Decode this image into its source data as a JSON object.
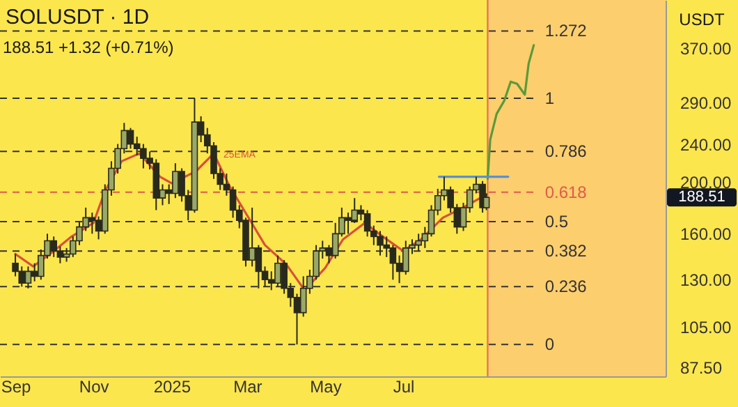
{
  "chart_data": {
    "type": "candlestick",
    "title": "SOLUSDT · 1D",
    "subtitle": "188.51 +1.32 (+0.71%)",
    "ylabel": "USDT",
    "color": "#2a2a1c",
    "log": true,
    "x": [
      "2024-09-01",
      "2024-09-06",
      "2024-09-11",
      "2024-09-16",
      "2024-09-21",
      "2024-09-26",
      "2024-10-01",
      "2024-10-06",
      "2024-10-11",
      "2024-10-16",
      "2024-10-21",
      "2024-10-26",
      "2024-10-31",
      "2024-11-05",
      "2024-11-10",
      "2024-11-15",
      "2024-11-20",
      "2024-11-25",
      "2024-11-30",
      "2024-12-05",
      "2024-12-10",
      "2024-12-15",
      "2024-12-20",
      "2024-12-25",
      "2024-12-30",
      "2025-01-04",
      "2025-01-09",
      "2025-01-14",
      "2025-01-19",
      "2025-01-24",
      "2025-01-29",
      "2025-02-03",
      "2025-02-08",
      "2025-02-13",
      "2025-02-18",
      "2025-02-23",
      "2025-02-28",
      "2025-03-05",
      "2025-03-10",
      "2025-03-15",
      "2025-03-20",
      "2025-03-25",
      "2025-03-30",
      "2025-04-04",
      "2025-04-09",
      "2025-04-14",
      "2025-04-19",
      "2025-04-24",
      "2025-04-29",
      "2025-05-04",
      "2025-05-09",
      "2025-05-14",
      "2025-05-19",
      "2025-05-24",
      "2025-05-29",
      "2025-06-03",
      "2025-06-08",
      "2025-06-13",
      "2025-06-18",
      "2025-06-23",
      "2025-06-28",
      "2025-07-03",
      "2025-07-08",
      "2025-07-13",
      "2025-07-18",
      "2025-07-23",
      "2025-07-28",
      "2025-08-02",
      "2025-08-07",
      "2025-08-12",
      "2025-08-17",
      "2025-08-22",
      "2025-08-27",
      "2025-09-01",
      "2025-09-04"
    ],
    "ohlc": [
      [
        140,
        146,
        132,
        135
      ],
      [
        135,
        138,
        126,
        128
      ],
      [
        128,
        138,
        125,
        135
      ],
      [
        135,
        140,
        129,
        132
      ],
      [
        132,
        149,
        130,
        145
      ],
      [
        145,
        160,
        143,
        155
      ],
      [
        155,
        158,
        144,
        148
      ],
      [
        148,
        151,
        140,
        144
      ],
      [
        144,
        150,
        141,
        146
      ],
      [
        146,
        158,
        144,
        155
      ],
      [
        155,
        169,
        152,
        165
      ],
      [
        165,
        180,
        162,
        172
      ],
      [
        172,
        176,
        160,
        170
      ],
      [
        170,
        173,
        156,
        162
      ],
      [
        162,
        200,
        160,
        195
      ],
      [
        195,
        222,
        190,
        215
      ],
      [
        215,
        240,
        210,
        235
      ],
      [
        235,
        264,
        230,
        255
      ],
      [
        255,
        258,
        235,
        240
      ],
      [
        240,
        248,
        228,
        235
      ],
      [
        235,
        240,
        215,
        225
      ],
      [
        225,
        232,
        214,
        220
      ],
      [
        220,
        224,
        178,
        188
      ],
      [
        188,
        200,
        182,
        195
      ],
      [
        195,
        200,
        183,
        192
      ],
      [
        192,
        220,
        188,
        212
      ],
      [
        212,
        215,
        185,
        190
      ],
      [
        190,
        195,
        170,
        178
      ],
      [
        178,
        295,
        176,
        265
      ],
      [
        265,
        272,
        242,
        250
      ],
      [
        250,
        258,
        230,
        238
      ],
      [
        238,
        242,
        205,
        210
      ],
      [
        210,
        215,
        195,
        200
      ],
      [
        200,
        210,
        190,
        195
      ],
      [
        195,
        198,
        172,
        178
      ],
      [
        178,
        182,
        164,
        170
      ],
      [
        170,
        172,
        138,
        142
      ],
      [
        142,
        180,
        138,
        150
      ],
      [
        150,
        152,
        125,
        135
      ],
      [
        135,
        138,
        126,
        130
      ],
      [
        130,
        135,
        124,
        128
      ],
      [
        128,
        145,
        126,
        140
      ],
      [
        140,
        142,
        122,
        125
      ],
      [
        125,
        128,
        115,
        120
      ],
      [
        120,
        122,
        97,
        112
      ],
      [
        112,
        132,
        110,
        125
      ],
      [
        125,
        136,
        122,
        132
      ],
      [
        132,
        152,
        130,
        148
      ],
      [
        148,
        155,
        143,
        150
      ],
      [
        150,
        152,
        140,
        145
      ],
      [
        145,
        168,
        143,
        160
      ],
      [
        160,
        180,
        158,
        172
      ],
      [
        172,
        176,
        160,
        170
      ],
      [
        170,
        188,
        168,
        178
      ],
      [
        178,
        182,
        170,
        175
      ],
      [
        175,
        178,
        158,
        162
      ],
      [
        162,
        166,
        152,
        158
      ],
      [
        158,
        162,
        145,
        152
      ],
      [
        152,
        158,
        144,
        150
      ],
      [
        150,
        152,
        130,
        140
      ],
      [
        140,
        145,
        128,
        135
      ],
      [
        135,
        155,
        133,
        150
      ],
      [
        150,
        156,
        146,
        152
      ],
      [
        152,
        160,
        148,
        155
      ],
      [
        155,
        165,
        150,
        160
      ],
      [
        160,
        182,
        158,
        178
      ],
      [
        178,
        196,
        174,
        190
      ],
      [
        190,
        207,
        186,
        195
      ],
      [
        195,
        198,
        176,
        180
      ],
      [
        180,
        183,
        160,
        165
      ],
      [
        165,
        184,
        162,
        180
      ],
      [
        180,
        198,
        176,
        195
      ],
      [
        195,
        207,
        192,
        200
      ],
      [
        200,
        203,
        176,
        180
      ],
      [
        180,
        192,
        178,
        188.51
      ]
    ],
    "series": [
      {
        "type": "line",
        "color": "#d9503a",
        "x": [
          "2024-09-01",
          "2024-09-15",
          "2024-10-01",
          "2024-10-15",
          "2024-11-01",
          "2024-11-10",
          "2024-11-23",
          "2024-12-07",
          "2024-12-23",
          "2025-01-01",
          "2025-01-20",
          "2025-02-03",
          "2025-02-15",
          "2025-03-01",
          "2025-03-15",
          "2025-04-01",
          "2025-04-15",
          "2025-05-01",
          "2025-05-15",
          "2025-06-01",
          "2025-06-15",
          "2025-07-01",
          "2025-07-15",
          "2025-08-01",
          "2025-08-15",
          "2025-09-04"
        ],
        "values": [
          146,
          138,
          148,
          158,
          168,
          194,
          222,
          230,
          207,
          201,
          212,
          230,
          199,
          174,
          152,
          139,
          124,
          137,
          156,
          168,
          158,
          148,
          156,
          172,
          179,
          191
        ]
      },
      {
        "type": "line",
        "color": "#5a9a3a",
        "x": [
          "2025-09-05",
          "2025-09-07",
          "2025-09-12",
          "2025-09-18",
          "2025-09-23",
          "2025-09-28",
          "2025-10-04",
          "2025-10-07",
          "2025-10-11"
        ],
        "values": [
          205,
          245,
          275,
          292,
          318,
          315,
          300,
          345,
          375
        ]
      },
      {
        "type": "line",
        "color": "#5b8fd0",
        "x": [
          "2025-07-29",
          "2025-09-21"
        ],
        "values": [
          207,
          207
        ]
      }
    ],
    "xlim": [
      "2024-08-20",
      "2026-01-22"
    ],
    "ylim": [
      84,
      460
    ],
    "xticks": [
      {
        "value": "2024-09-01",
        "label": "Sep"
      },
      {
        "value": "2024-11-01",
        "label": "Nov"
      },
      {
        "value": "2025-01-01",
        "label": "2025"
      },
      {
        "value": "2025-03-01",
        "label": "Mar"
      },
      {
        "value": "2025-05-01",
        "label": "May"
      },
      {
        "value": "2025-07-01",
        "label": "Jul"
      }
    ],
    "yticks": [
      {
        "value": 87.5,
        "label": "87.50"
      },
      {
        "value": 105,
        "label": "105.00"
      },
      {
        "value": 130,
        "label": "130.00"
      },
      {
        "value": 160,
        "label": "160.00"
      },
      {
        "value": 200,
        "label": "200.00"
      },
      {
        "value": 240,
        "label": "240.00"
      },
      {
        "value": 290,
        "label": "290.00"
      },
      {
        "value": 370,
        "label": "370.00"
      }
    ],
    "bands": [
      {
        "axis": "x",
        "from": "2025-09-05",
        "to": "2026-01-22",
        "color": "#fcc67a"
      }
    ],
    "ref_lines": [
      {
        "axis": "x",
        "value": "2025-09-05",
        "color": "#e8735a",
        "line_style": "solid"
      },
      {
        "axis": "y",
        "value": 400,
        "line_style": "dashed"
      },
      {
        "axis": "y",
        "value": 295,
        "line_style": "dashed"
      },
      {
        "axis": "y",
        "value": 232,
        "line_style": "dashed"
      },
      {
        "axis": "y",
        "value": 193,
        "color": "#e05a48",
        "line_style": "dashed"
      },
      {
        "axis": "y",
        "value": 169,
        "line_style": "dashed"
      },
      {
        "axis": "y",
        "value": 148,
        "line_style": "dashed"
      },
      {
        "axis": "y",
        "value": 126,
        "line_style": "dashed"
      },
      {
        "axis": "y",
        "value": 97,
        "line_style": "dashed"
      }
    ],
    "annotations": [
      "25EMA",
      "188.51",
      {
        "text": "1.272",
        "x": "2025-10-11",
        "y": 400
      },
      {
        "text": "1",
        "x": "2025-10-11",
        "y": 295
      },
      {
        "text": "0.786",
        "x": "2025-10-11",
        "y": 232
      },
      {
        "text": "0.618",
        "x": "2025-10-11",
        "y": 193
      },
      {
        "text": "0.5",
        "x": "2025-10-11",
        "y": 169
      },
      {
        "text": "0.382",
        "x": "2025-10-11",
        "y": 148
      },
      {
        "text": "0.236",
        "x": "2025-10-11",
        "y": 126
      },
      {
        "text": "0",
        "x": "2025-10-11",
        "y": 97
      }
    ]
  }
}
